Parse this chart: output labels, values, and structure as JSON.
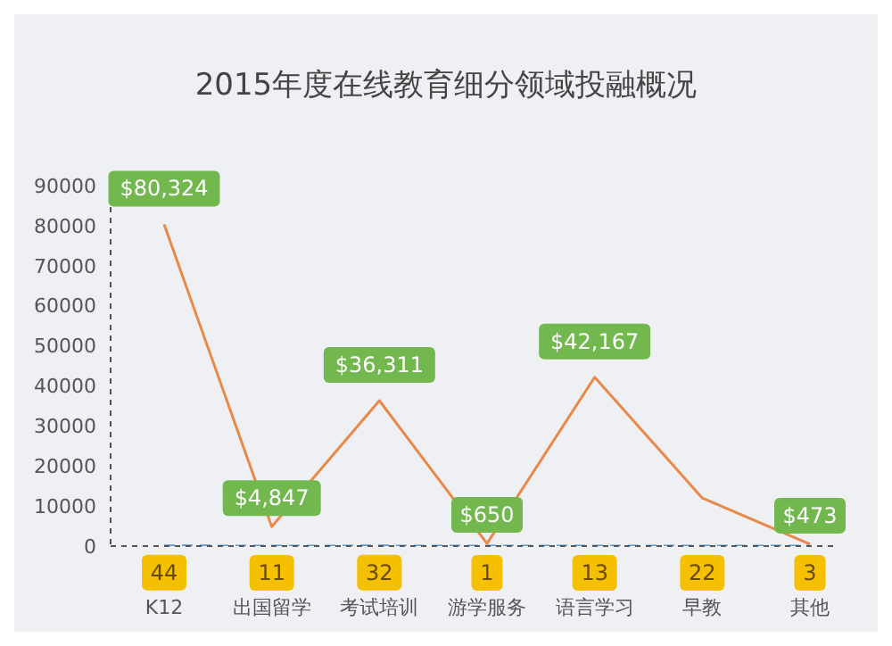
{
  "chart_data": {
    "type": "line",
    "title": "2015年度在线教育细分领域投融概况",
    "categories": [
      "K12",
      "出国留学",
      "考试培训",
      "游学服务",
      "语言学习",
      "早教",
      "其他"
    ],
    "series": [
      {
        "color": "#e8894a",
        "values": [
          80324,
          4847,
          36311,
          650,
          42167,
          12000,
          473
        ],
        "value_labels": [
          "$80,324",
          "$4,847",
          "$36,311",
          "$650",
          "$42,167",
          null,
          "$473"
        ]
      },
      {
        "color": "#5b9bd5",
        "line_style": "dashed",
        "values": [
          44,
          11,
          32,
          1,
          13,
          22,
          3
        ],
        "value_labels": [
          "44",
          "11",
          "32",
          "1",
          "13",
          "22",
          "3"
        ]
      }
    ],
    "ylim": [
      0,
      90000
    ],
    "yticks": [
      0,
      10000,
      20000,
      30000,
      40000,
      50000,
      60000,
      70000,
      80000,
      90000
    ],
    "grid": false,
    "legend": false,
    "marker": "none"
  }
}
